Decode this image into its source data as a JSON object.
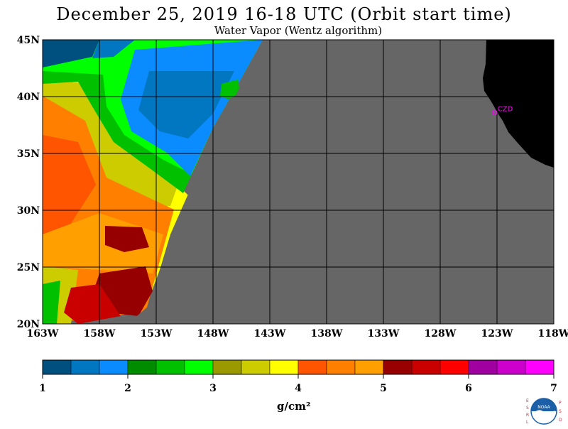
{
  "header": {
    "title": "December 25, 2019  16-18 UTC  (Orbit start time)",
    "subtitle": "Water Vapor (Wentz algorithm)"
  },
  "map": {
    "lat_range": [
      20,
      45
    ],
    "lon_range": [
      -163,
      -118
    ],
    "lat_ticks": [
      {
        "value": 20,
        "label": "20N"
      },
      {
        "value": 25,
        "label": "25N"
      },
      {
        "value": 30,
        "label": "30N"
      },
      {
        "value": 35,
        "label": "35N"
      },
      {
        "value": 40,
        "label": "40N"
      },
      {
        "value": 45,
        "label": "45N"
      }
    ],
    "lon_ticks": [
      {
        "value": -163,
        "label": "163W"
      },
      {
        "value": -158,
        "label": "158W"
      },
      {
        "value": -153,
        "label": "153W"
      },
      {
        "value": -148,
        "label": "148W"
      },
      {
        "value": -143,
        "label": "143W"
      },
      {
        "value": -138,
        "label": "138W"
      },
      {
        "value": -133,
        "label": "133W"
      },
      {
        "value": -128,
        "label": "128W"
      },
      {
        "value": -123,
        "label": "123W"
      },
      {
        "value": -118,
        "label": "118W"
      }
    ],
    "station": {
      "label": "CZD",
      "lat": 38.6,
      "lon": -123.2,
      "color": "#ff00ff"
    },
    "colors": {
      "no_data": "#666666",
      "land": "#000000",
      "grid": "#000000"
    }
  },
  "colorbar": {
    "min": 1,
    "max": 7,
    "tick_labels": [
      "1",
      "2",
      "3",
      "4",
      "5",
      "6",
      "7"
    ],
    "units": "g/cm²",
    "colors": [
      "#00507f",
      "#0077c0",
      "#0a8cff",
      "#008c00",
      "#00c000",
      "#00ff00",
      "#9a9a00",
      "#cccc00",
      "#ffff00",
      "#ff5500",
      "#ff7f00",
      "#ffa000",
      "#960000",
      "#c80000",
      "#ff0000",
      "#a0009f",
      "#cc00cc",
      "#ff00ff"
    ]
  },
  "branding": {
    "logo_text": "NOAA",
    "left_side": "ESRL",
    "right_side": "PSD"
  }
}
